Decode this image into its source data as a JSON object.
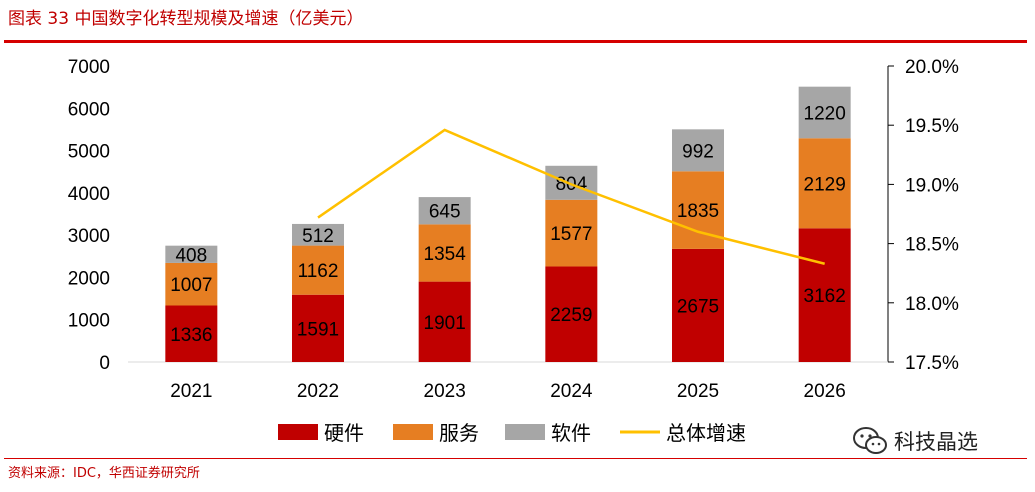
{
  "header": {
    "title": "图表 33  中国数字化转型规模及增速（亿美元）"
  },
  "footer": {
    "source": "资料来源：IDC，华西证券研究所"
  },
  "watermark": {
    "text": "科技晶选",
    "icon": "wechat-icon"
  },
  "colors": {
    "hardware": "#c00000",
    "services": "#e67e22",
    "software": "#a6a6a6",
    "growth": "#ffc000",
    "rule": "#d50000"
  },
  "chart_data": {
    "type": "bar",
    "stacked": true,
    "title": "中国数字化转型规模及增速（亿美元）",
    "categories": [
      "2021",
      "2022",
      "2023",
      "2024",
      "2025",
      "2026"
    ],
    "series": [
      {
        "name": "硬件",
        "key": "hardware",
        "values": [
          1336,
          1591,
          1901,
          2259,
          2675,
          3162
        ]
      },
      {
        "name": "服务",
        "key": "services",
        "values": [
          1007,
          1162,
          1354,
          1577,
          1835,
          2129
        ]
      },
      {
        "name": "软件",
        "key": "software",
        "values": [
          408,
          512,
          645,
          804,
          992,
          1220
        ]
      }
    ],
    "line": {
      "name": "总体增速",
      "axis": "right",
      "values": [
        null,
        18.72,
        19.46,
        19.0,
        18.6,
        18.33
      ]
    },
    "ylim": [
      0,
      7000
    ],
    "yticks": [
      "0",
      "1000",
      "2000",
      "3000",
      "4000",
      "5000",
      "6000",
      "7000"
    ],
    "y2lim": [
      17.5,
      20.0
    ],
    "y2ticks": [
      "17.5%",
      "18.0%",
      "18.5%",
      "19.0%",
      "19.5%",
      "20.0%"
    ],
    "legend": [
      "硬件",
      "服务",
      "软件",
      "总体增速"
    ],
    "legend_position": "bottom"
  }
}
